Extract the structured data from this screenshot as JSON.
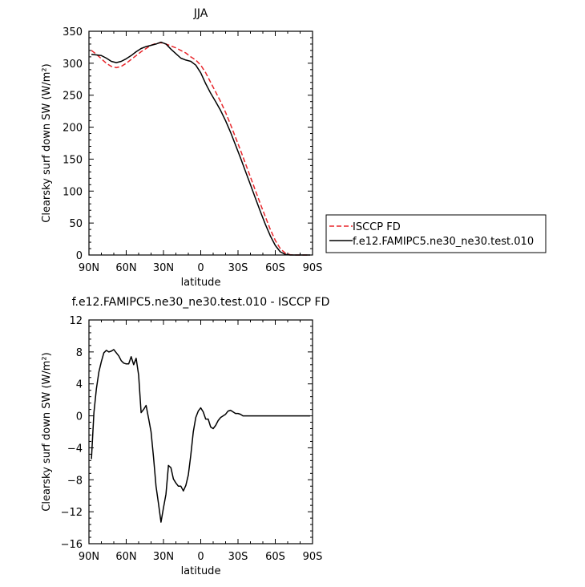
{
  "chart_data": [
    {
      "type": "line",
      "title": "JJA",
      "xlabel": "latitude",
      "ylabel": "Clearsky surf down SW (W/m²)",
      "xlim": [
        90,
        -90
      ],
      "ylim": [
        0,
        350
      ],
      "x_ticks": [
        90,
        60,
        30,
        0,
        -30,
        -60,
        -90
      ],
      "x_tick_labels": [
        "90N",
        "60N",
        "30N",
        "0",
        "30S",
        "60S",
        "90S"
      ],
      "y_ticks": [
        0,
        50,
        100,
        150,
        200,
        250,
        300,
        350
      ],
      "y_tick_labels": [
        "0",
        "50",
        "100",
        "150",
        "200",
        "250",
        "300",
        "350"
      ],
      "grid": false,
      "legend": "right",
      "series": [
        {
          "name": "ISCCP FD",
          "color": "#e8262b",
          "dash": "dashed",
          "x": [
            88,
            84,
            80,
            76,
            72,
            68,
            64,
            60,
            56,
            52,
            48,
            44,
            40,
            36,
            32,
            28,
            24,
            20,
            16,
            12,
            8,
            4,
            0,
            -4,
            -8,
            -12,
            -16,
            -20,
            -24,
            -28,
            -32,
            -36,
            -40,
            -44,
            -48,
            -52,
            -56,
            -60,
            -64,
            -68,
            -72,
            -76,
            -80,
            -84,
            -88
          ],
          "values": [
            320,
            314,
            307,
            300,
            295,
            293,
            295,
            300,
            306,
            312,
            318,
            323,
            328,
            331,
            332,
            330,
            327,
            324,
            320,
            316,
            310,
            305,
            297,
            285,
            270,
            255,
            240,
            223,
            204,
            184,
            164,
            143,
            122,
            101,
            80,
            60,
            40,
            23,
            10,
            3,
            0.5,
            0,
            0,
            0,
            0
          ]
        },
        {
          "name": "f.e12.FAMIPC5.ne30_ne30.test.010",
          "color": "#000000",
          "dash": "solid",
          "x": [
            88,
            84,
            80,
            76,
            72,
            68,
            64,
            60,
            56,
            52,
            48,
            44,
            40,
            36,
            32,
            28,
            24,
            20,
            16,
            12,
            8,
            4,
            0,
            -4,
            -8,
            -12,
            -16,
            -20,
            -24,
            -28,
            -32,
            -36,
            -40,
            -44,
            -48,
            -52,
            -56,
            -60,
            -64,
            -68,
            -72,
            -76,
            -80,
            -84,
            -88
          ],
          "values": [
            314,
            313,
            312,
            308,
            303,
            301,
            303,
            307,
            312,
            318,
            323,
            326,
            328,
            330,
            333,
            330,
            322,
            315,
            308,
            305,
            303,
            297,
            285,
            268,
            253,
            240,
            226,
            210,
            192,
            172,
            152,
            131,
            110,
            89,
            68,
            48,
            30,
            15,
            5,
            1,
            0,
            0,
            0,
            0,
            0
          ]
        }
      ]
    },
    {
      "type": "line",
      "title": "f.e12.FAMIPC5.ne30_ne30.test.010 - ISCCP FD",
      "xlabel": "latitude",
      "ylabel": "Clearsky surf down SW (W/m²)",
      "xlim": [
        90,
        -90
      ],
      "ylim": [
        -16,
        12
      ],
      "x_ticks": [
        90,
        60,
        30,
        0,
        -30,
        -60,
        -90
      ],
      "x_tick_labels": [
        "90N",
        "60N",
        "30N",
        "0",
        "30S",
        "60S",
        "90S"
      ],
      "y_ticks": [
        -16,
        -12,
        -8,
        -4,
        0,
        4,
        8,
        12
      ],
      "y_tick_labels": [
        "−16",
        "−12",
        "−8",
        "−4",
        "0",
        "4",
        "8",
        "12"
      ],
      "grid": false,
      "series": [
        {
          "color": "#000000",
          "dash": "solid",
          "x": [
            88,
            86,
            84,
            82,
            80,
            78,
            76,
            74,
            72,
            70,
            68,
            66,
            64,
            62,
            60,
            58,
            56,
            54,
            52,
            50,
            48,
            46,
            44,
            42,
            40,
            38,
            36,
            34,
            32,
            30,
            28,
            26,
            24,
            22,
            20,
            18,
            16,
            14,
            12,
            10,
            8,
            6,
            4,
            2,
            0,
            -2,
            -4,
            -6,
            -8,
            -10,
            -12,
            -14,
            -16,
            -18,
            -20,
            -22,
            -24,
            -26,
            -28,
            -30,
            -32,
            -34,
            -36,
            -38,
            -40,
            -42,
            -44,
            -46,
            -48,
            -50,
            -52,
            -54,
            -56,
            -58,
            -60,
            -62,
            -64,
            -66,
            -68,
            -70,
            -72,
            -74,
            -76,
            -78,
            -80,
            -82,
            -84,
            -86,
            -88
          ],
          "values": [
            -5.4,
            0.4,
            3.4,
            5.5,
            6.8,
            7.9,
            8.2,
            8.0,
            8.1,
            8.3,
            7.9,
            7.5,
            6.9,
            6.6,
            6.5,
            6.5,
            7.4,
            6.4,
            7.2,
            5.1,
            0.4,
            0.8,
            1.3,
            -0.3,
            -2.0,
            -5.2,
            -8.8,
            -11.0,
            -13.3,
            -11.5,
            -9.8,
            -6.2,
            -6.5,
            -7.9,
            -8.4,
            -8.8,
            -8.8,
            -9.4,
            -8.7,
            -7.4,
            -4.9,
            -2.0,
            -0.2,
            0.6,
            1.0,
            0.5,
            -0.4,
            -0.4,
            -1.4,
            -1.6,
            -1.2,
            -0.6,
            -0.2,
            0.0,
            0.2,
            0.6,
            0.7,
            0.5,
            0.3,
            0.3,
            0.2,
            0.0,
            0.0,
            0.0,
            0.0,
            0.0,
            0.0,
            0.0,
            0.0,
            0.0,
            0.0,
            0.0,
            0.0,
            0.0,
            0.0,
            0.0,
            0.0,
            0.0,
            0.0,
            0.0,
            0.0,
            0.0,
            0.0,
            0.0,
            0.0,
            0.0,
            0.0,
            0.0,
            0.0
          ]
        }
      ]
    }
  ]
}
